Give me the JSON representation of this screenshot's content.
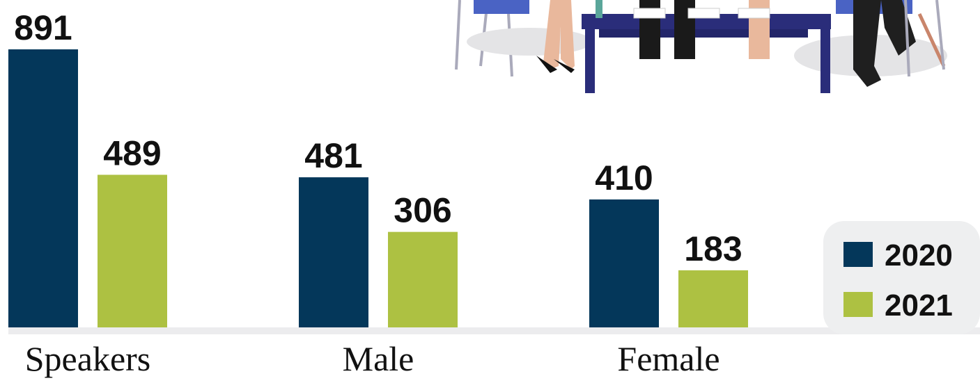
{
  "chart_data": {
    "type": "bar",
    "categories": [
      "Speakers",
      "Male",
      "Female"
    ],
    "series": [
      {
        "name": "2020",
        "color": "#04375a",
        "values": [
          891,
          481,
          410
        ]
      },
      {
        "name": "2021",
        "color": "#adc142",
        "values": [
          489,
          306,
          183
        ]
      }
    ],
    "legend": "bottom-right"
  }
}
